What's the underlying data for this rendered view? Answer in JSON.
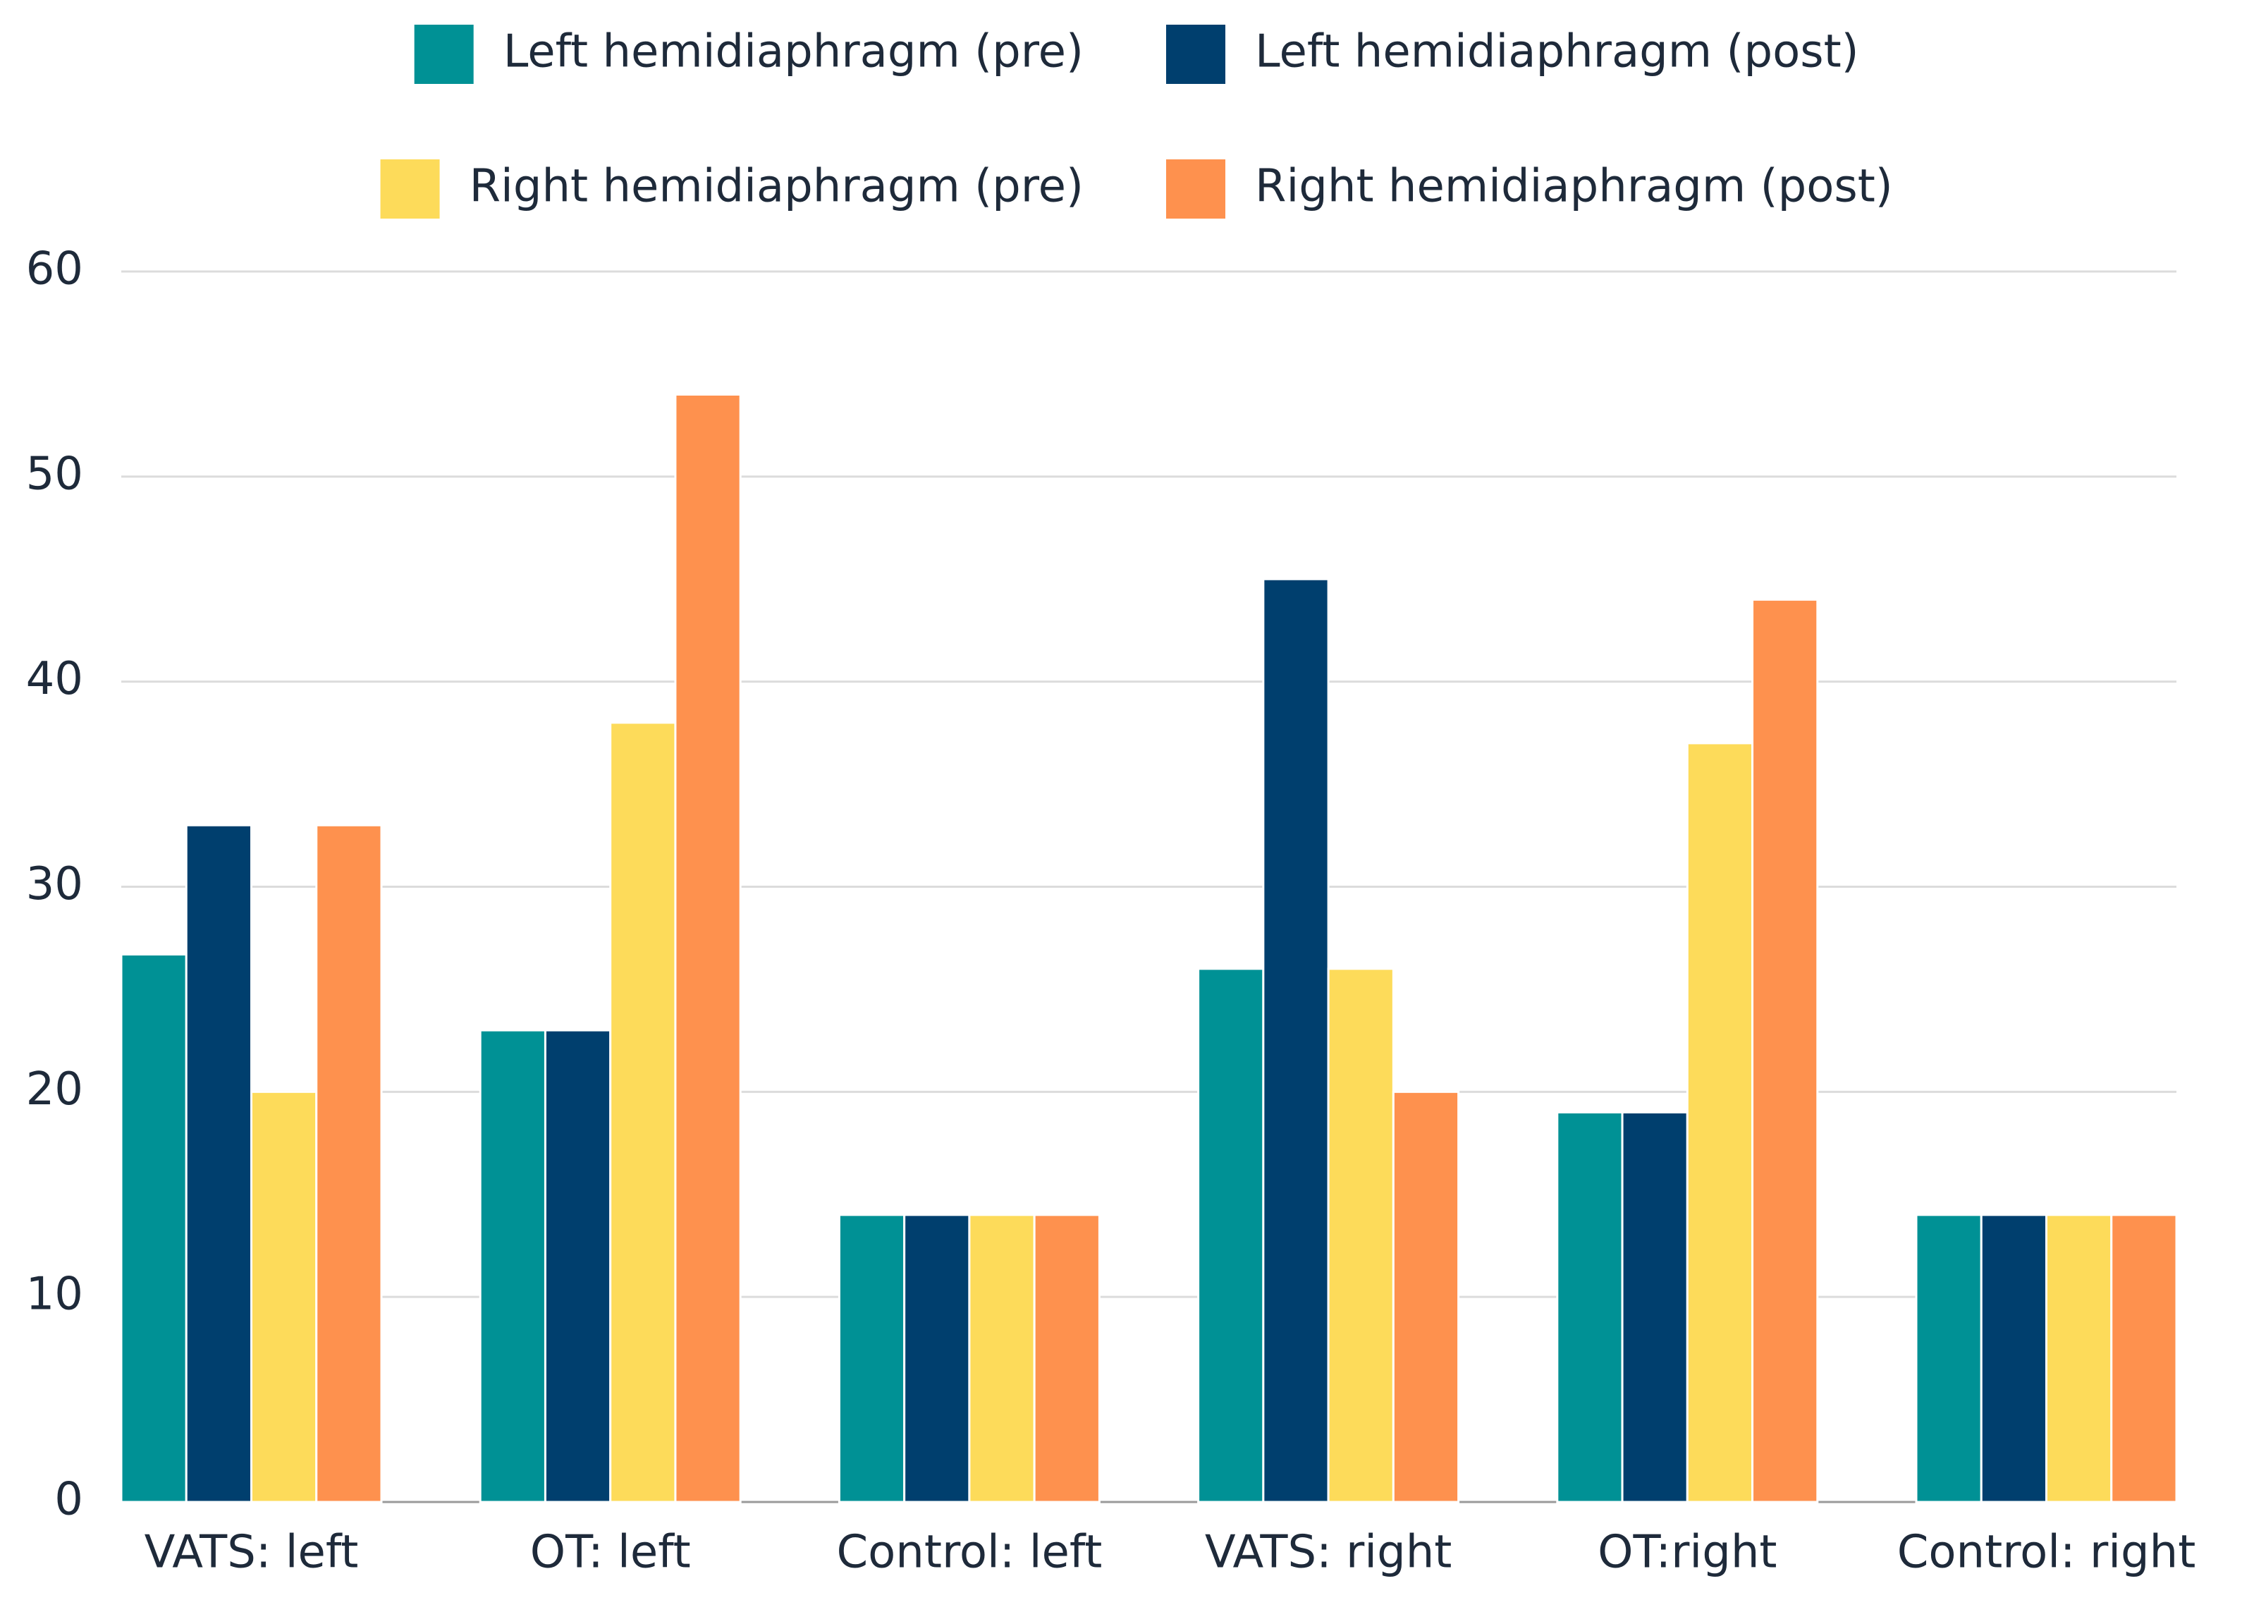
{
  "chart_data": {
    "type": "bar",
    "categories": [
      "VATS: left",
      "OT: left",
      "Control: left",
      "VATS: right",
      "OT:right",
      "Control: right"
    ],
    "series": [
      {
        "name": "Left hemidiaphragm (pre)",
        "color": "#009195",
        "values": [
          26.7,
          23,
          14,
          26,
          19,
          14
        ]
      },
      {
        "name": "Left hemidiaphragm (post)",
        "color": "#003f6e",
        "values": [
          33,
          23,
          14,
          45,
          19,
          14
        ]
      },
      {
        "name": "Right hemidiaphragm (pre)",
        "color": "#fddb5a",
        "values": [
          20,
          38,
          14,
          26,
          37,
          14
        ]
      },
      {
        "name": "Right hemidiaphragm (post)",
        "color": "#fe914e",
        "values": [
          33,
          54,
          14,
          20,
          44,
          14
        ]
      }
    ],
    "ylim": [
      0,
      60
    ],
    "yticks": [
      0,
      10,
      20,
      30,
      40,
      50,
      60
    ],
    "grid": true
  }
}
